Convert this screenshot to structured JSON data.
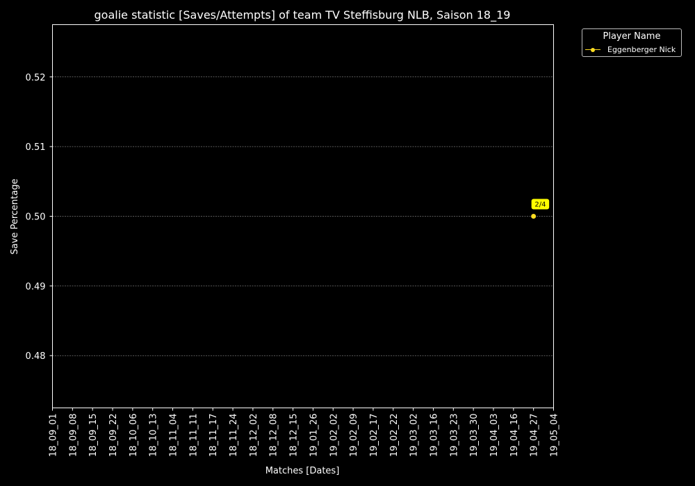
{
  "chart_data": {
    "type": "line",
    "title": "goalie statistic [Saves/Attempts] of team TV Steffisburg NLB, Saison 18_19",
    "xlabel": "Matches [Dates]",
    "ylabel": "Save Percentage",
    "categories": [
      "18_09_01",
      "18_09_08",
      "18_09_15",
      "18_09_22",
      "18_10_06",
      "18_10_13",
      "18_11_04",
      "18_11_11",
      "18_11_17",
      "18_11_24",
      "18_12_02",
      "18_12_08",
      "18_12_15",
      "19_01_26",
      "19_02_02",
      "19_02_09",
      "19_02_17",
      "19_02_22",
      "19_03_02",
      "19_03_16",
      "19_03_23",
      "19_03_30",
      "19_04_03",
      "19_04_16",
      "19_04_27",
      "19_05_04"
    ],
    "ylim": [
      0.4725,
      0.5275
    ],
    "yticks": [
      "0.48",
      "0.49",
      "0.50",
      "0.51",
      "0.52"
    ],
    "grid": "horizontal dashed",
    "legend": {
      "title": "Player Name",
      "placement": "outside top-right"
    },
    "series": [
      {
        "name": "Eggenberger Nick",
        "color": "#ffdd22",
        "points": [
          {
            "x": "19_04_27",
            "y": 0.5,
            "label": "2/4"
          }
        ]
      }
    ]
  },
  "colors": {
    "background": "#000000",
    "foreground": "#ffffff",
    "grid": "#7a7a7a",
    "annotation_bg": "#ffff00"
  }
}
